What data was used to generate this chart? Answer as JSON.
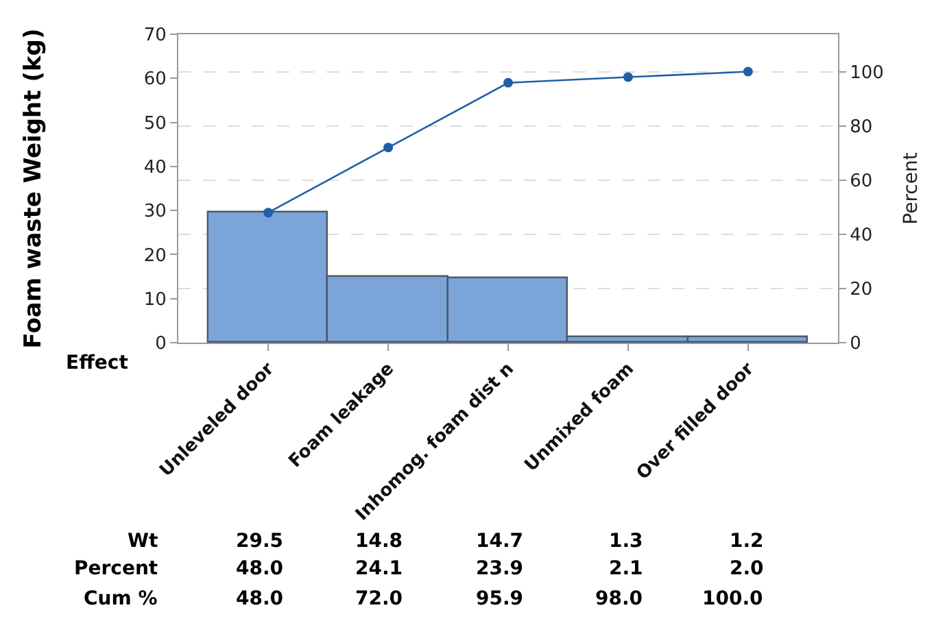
{
  "chart_data": {
    "type": "bar",
    "xlabel": "Effect",
    "ylabel": "Foam waste Weight (kg)",
    "y2label": "Percent",
    "categories": [
      "Unleveled door",
      "Foam leakage",
      "Inhomog. foam dist n",
      "Unmixed foam",
      "Over filled door"
    ],
    "series": [
      {
        "color": "#7ba4d9",
        "values": [
          29.5,
          14.8,
          14.7,
          1.3,
          1.2
        ],
        "value_labels": [
          "29.5",
          "14.8",
          "14.7",
          "1.3",
          "1.2"
        ]
      },
      {
        "type": "line",
        "axis": "y2",
        "color": "#1f5fa8",
        "values": [
          48.0,
          72.0,
          95.9,
          98.0,
          100.0
        ],
        "value_labels": [
          "48.0",
          "72.0",
          "95.9",
          "98.0",
          "100.0"
        ]
      }
    ],
    "annotations": [
      "Wt",
      "Percent",
      "Cum %",
      "48.0",
      "24.1",
      "23.9",
      "2.1",
      "2.0"
    ],
    "ylim": [
      0,
      70
    ],
    "yticks": [
      0,
      10,
      20,
      30,
      40,
      50,
      60,
      70
    ],
    "y2lim": [
      0,
      113.8
    ],
    "y2ticks": [
      0,
      20,
      40,
      60,
      80,
      100
    ],
    "grid": true,
    "legend": false,
    "marker": "circle"
  }
}
